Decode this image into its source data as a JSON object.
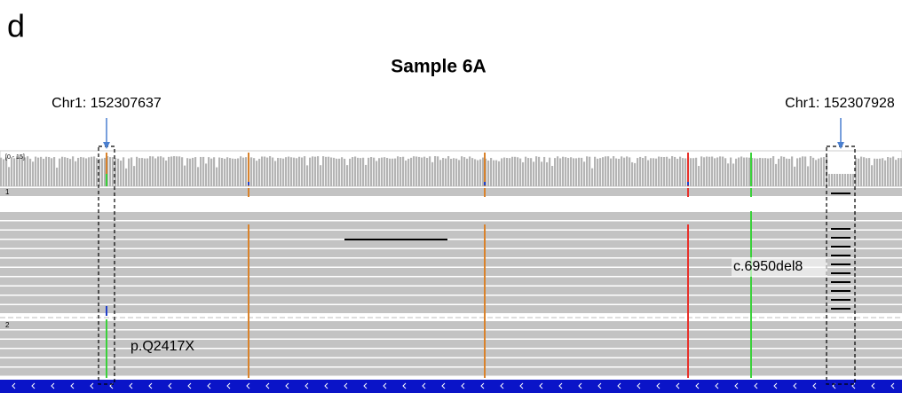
{
  "panel_label": "d",
  "title": "Sample 6A",
  "positions": {
    "left": "Chr1: 152307637",
    "right": "Chr1: 152307928"
  },
  "coverage_track": {
    "range_label": "[0 - 15]"
  },
  "groups": {
    "first": "1",
    "second": "2"
  },
  "annotations": {
    "deletion": "c.6950del8",
    "nonsense": "p.Q2417X"
  }
}
